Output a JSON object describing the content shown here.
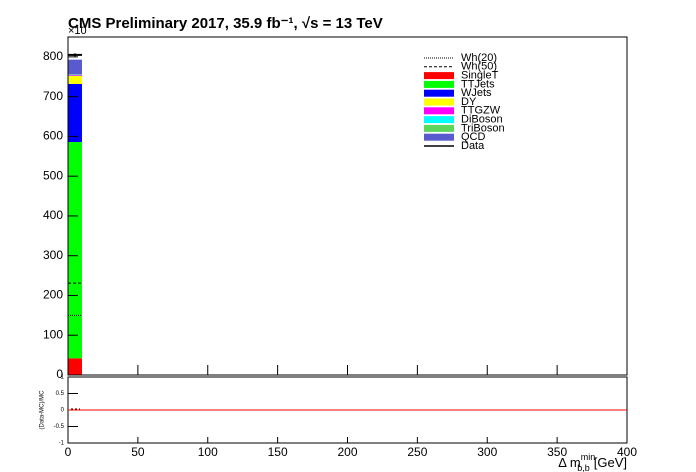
{
  "chart_data": {
    "type": "histogram",
    "title": "CMS Preliminary 2017, 35.9 fb⁻¹, √s = 13 TeV",
    "y_exponent": "×10",
    "x_label": "Δ m",
    "x_label_sup": "min",
    "x_label_sub": "b,b",
    "x_label_unit": "[GeV]",
    "bins": [
      0,
      10
    ],
    "xlim": [
      0,
      400
    ],
    "xticks": [
      0,
      50,
      100,
      150,
      200,
      250,
      300,
      350,
      400
    ],
    "ylim": [
      0,
      850
    ],
    "yticks": [
      0,
      100,
      200,
      300,
      400,
      500,
      600,
      700,
      800
    ],
    "series": [
      {
        "name": "Wh(20)",
        "style": "dotted",
        "color": "#000000",
        "values": [
          150
        ]
      },
      {
        "name": "Wh(50)",
        "style": "dashed",
        "color": "#000000",
        "values": [
          231
        ]
      },
      {
        "name": "SingleT",
        "style": "fill",
        "color": "#ff0000",
        "values": [
          42
        ]
      },
      {
        "name": "TTJets",
        "style": "fill",
        "color": "#00ff00",
        "values": [
          544
        ]
      },
      {
        "name": "WJets",
        "style": "fill",
        "color": "#0000ff",
        "values": [
          146
        ]
      },
      {
        "name": "DY",
        "style": "fill",
        "color": "#ffff00",
        "values": [
          20
        ]
      },
      {
        "name": "TTGZW",
        "style": "fill",
        "color": "#ff00ff",
        "values": [
          2
        ]
      },
      {
        "name": "DiBoson",
        "style": "fill",
        "color": "#00ffff",
        "values": [
          1
        ]
      },
      {
        "name": "TriBoson",
        "style": "fill",
        "color": "#5cd75c",
        "values": [
          1
        ]
      },
      {
        "name": "QCD",
        "style": "fill",
        "color": "#5a5acf",
        "values": [
          37
        ]
      },
      {
        "name": "Data",
        "style": "data",
        "color": "#000000",
        "values": [
          805
        ]
      }
    ],
    "ratio": {
      "y_label": "(Data-MC)/MC",
      "ylim": [
        -1,
        1
      ],
      "yticks": [
        -1,
        -0.5,
        0,
        0.5,
        1
      ],
      "line_color": "#ff0000",
      "values": [
        0.02
      ]
    }
  }
}
